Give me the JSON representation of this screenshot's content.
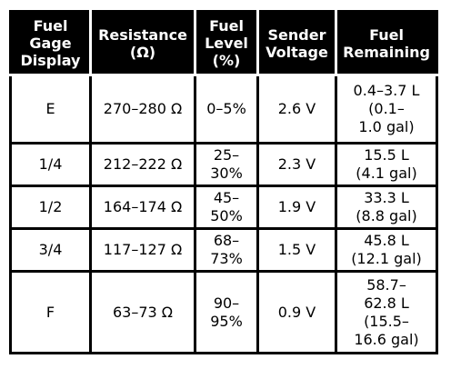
{
  "headers": [
    "Fuel\nGage\nDisplay",
    "Resistance\n(Ω)",
    "Fuel\nLevel\n(%)",
    "Sender\nVoltage",
    "Fuel\nRemaining"
  ],
  "rows": [
    {
      "display": "E",
      "resistance": "270–280 Ω",
      "level": "0–5%",
      "voltage": "2.6 V",
      "remaining": "0.4–3.7 L\n(0.1–\n1.0 gal)"
    },
    {
      "display": "1/4",
      "resistance": "212–222 Ω",
      "level": "25–\n30%",
      "voltage": "2.3 V",
      "remaining": "15.5 L\n(4.1 gal)"
    },
    {
      "display": "1/2",
      "resistance": "164–174 Ω",
      "level": "45–\n50%",
      "voltage": "1.9 V",
      "remaining": "33.3 L\n(8.8 gal)"
    },
    {
      "display": "3/4",
      "resistance": "117–127 Ω",
      "level": "68–\n73%",
      "voltage": "1.5 V",
      "remaining": "45.8 L\n(12.1 gal)"
    },
    {
      "display": "F",
      "resistance": "63–73 Ω",
      "level": "90–\n95%",
      "voltage": "0.9 V",
      "remaining": "58.7–\n62.8 L\n(15.5–\n16.6 gal)"
    }
  ]
}
